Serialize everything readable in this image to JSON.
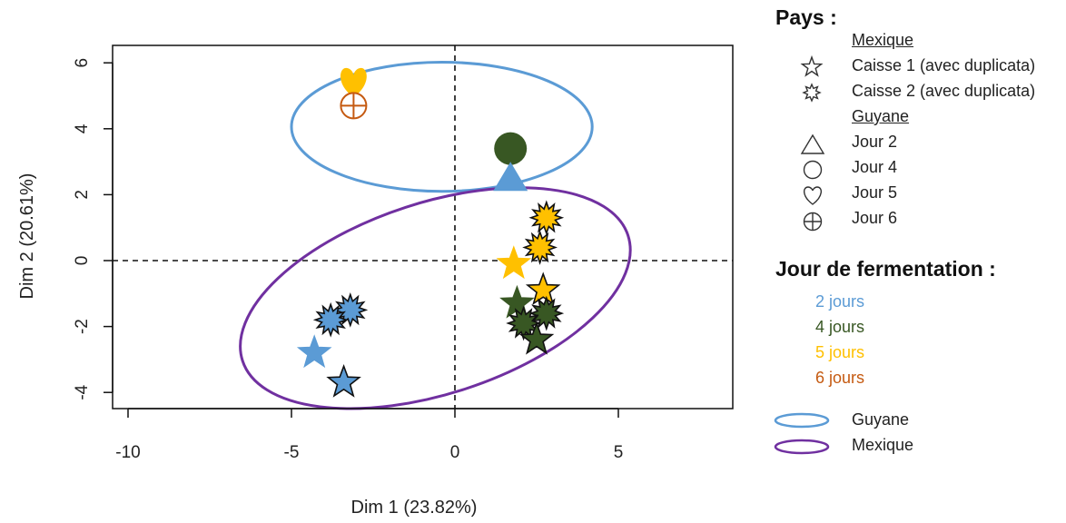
{
  "chart_data": {
    "type": "scatter",
    "xlabel": "Dim 1 (23.82%)",
    "ylabel": "Dim 2 (20.61%)",
    "xlim": [
      -10,
      8
    ],
    "ylim": [
      -4.5,
      6.5
    ],
    "xticks": [
      "-10",
      "-5",
      "0",
      "5"
    ],
    "yticks": [
      "6",
      "4",
      "2",
      "0",
      "-2",
      "-4"
    ],
    "grid": false,
    "reference_lines": [
      {
        "axis": "x",
        "value": 0,
        "style": "dashed"
      },
      {
        "axis": "y",
        "value": 0,
        "style": "dashed"
      }
    ],
    "colors": {
      "2 jours": "#5B9BD5",
      "4 jours": "#385723",
      "5 jours": "#FFC000",
      "6 jours": "#C55A11"
    },
    "points": [
      {
        "x": -3.1,
        "y": 5.4,
        "marker": "heart",
        "pays": "Guyane",
        "jour": "5 jours"
      },
      {
        "x": -3.1,
        "y": 4.7,
        "marker": "circle-cross",
        "pays": "Guyane",
        "jour": "6 jours"
      },
      {
        "x": 1.7,
        "y": 3.4,
        "marker": "circle",
        "pays": "Guyane",
        "jour": "4 jours"
      },
      {
        "x": 1.7,
        "y": 2.5,
        "marker": "triangle",
        "pays": "Guyane",
        "jour": "2 jours"
      },
      {
        "x": 2.8,
        "y": 1.3,
        "marker": "burst",
        "pays": "Mexique",
        "jour": "5 jours"
      },
      {
        "x": 2.6,
        "y": 0.4,
        "marker": "burst",
        "pays": "Mexique",
        "jour": "5 jours"
      },
      {
        "x": 1.8,
        "y": -0.1,
        "marker": "star",
        "pays": "Mexique",
        "jour": "5 jours"
      },
      {
        "x": 2.7,
        "y": -0.9,
        "marker": "star",
        "pays": "Mexique",
        "jour": "5 jours"
      },
      {
        "x": 1.9,
        "y": -1.3,
        "marker": "star",
        "pays": "Mexique",
        "jour": "4 jours"
      },
      {
        "x": 2.8,
        "y": -1.6,
        "marker": "burst",
        "pays": "Mexique",
        "jour": "4 jours"
      },
      {
        "x": 2.1,
        "y": -1.9,
        "marker": "burst",
        "pays": "Mexique",
        "jour": "4 jours"
      },
      {
        "x": 2.5,
        "y": -2.4,
        "marker": "star",
        "pays": "Mexique",
        "jour": "4 jours"
      },
      {
        "x": -3.2,
        "y": -1.5,
        "marker": "burst",
        "pays": "Mexique",
        "jour": "2 jours"
      },
      {
        "x": -3.8,
        "y": -1.8,
        "marker": "burst",
        "pays": "Mexique",
        "jour": "2 jours"
      },
      {
        "x": -4.3,
        "y": -2.8,
        "marker": "star",
        "pays": "Mexique",
        "jour": "2 jours"
      },
      {
        "x": -3.4,
        "y": -3.7,
        "marker": "star",
        "pays": "Mexique",
        "jour": "2 jours"
      }
    ],
    "ellipses": [
      {
        "name": "Guyane",
        "color": "#5B9BD5",
        "cx": -0.4,
        "cy": 4.06,
        "rx": 4.6,
        "ry": 1.96,
        "angle_deg": 0
      },
      {
        "name": "Mexique",
        "color": "#7030A0",
        "cx": -0.6,
        "cy": -1.14,
        "rx": 6.2,
        "ry": 2.9,
        "angle_deg": -18
      }
    ]
  },
  "legend": {
    "pays_title": "Pays :",
    "mexique_sub": "Mexique",
    "caisse1": "Caisse 1 (avec duplicata)",
    "caisse2": "Caisse 2 (avec duplicata)",
    "guyane_sub": "Guyane",
    "jour2": "Jour 2",
    "jour4": "Jour 4",
    "jour5": "Jour 5",
    "jour6": "Jour 6",
    "fermentation_title": "Jour de fermentation :",
    "j2": "2 jours",
    "j4": "4 jours",
    "j5": "5 jours",
    "j6": "6 jours",
    "ell_guyane": "Guyane",
    "ell_mexique": "Mexique",
    "colors": {
      "j2": "#5B9BD5",
      "j4": "#385723",
      "j5": "#FFC000",
      "j6": "#C55A11",
      "ell_guyane": "#5B9BD5",
      "ell_mexique": "#7030A0"
    }
  }
}
